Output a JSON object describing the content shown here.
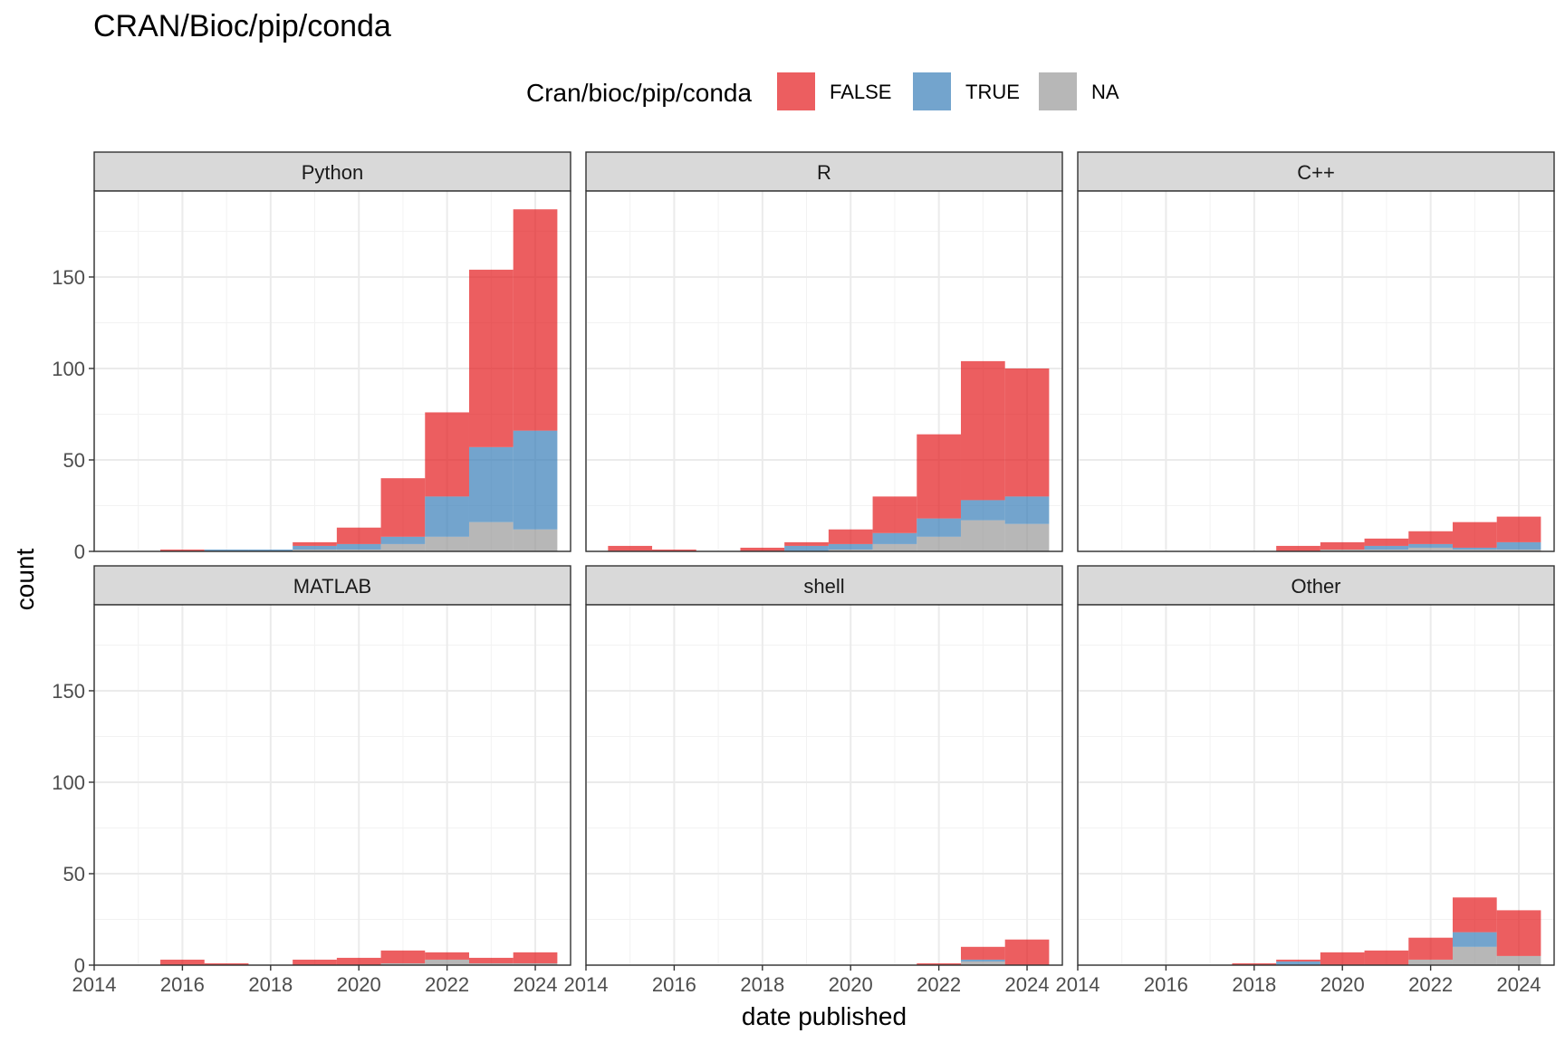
{
  "chart_data": {
    "type": "bar",
    "title": "CRAN/Bioc/pip/conda",
    "xlabel": "date published",
    "ylabel": "count",
    "xlim": [
      2014,
      2024.8
    ],
    "ylim": [
      0,
      197
    ],
    "x_ticks": [
      2014,
      2016,
      2018,
      2020,
      2022,
      2024
    ],
    "y_ticks": [
      0,
      50,
      100,
      150
    ],
    "bin_starts": [
      2015.5,
      2016.5,
      2017.5,
      2018.5,
      2019.5,
      2020.5,
      2021.5,
      2022.5,
      2023.5
    ],
    "bin_width": 1,
    "extra_bin": {
      "start": 2014.5,
      "end": 2015.5
    },
    "legend": {
      "title": "Cran/bioc/pip/conda",
      "position": "top",
      "entries": [
        {
          "label": "FALSE",
          "color": "#E41A1C"
        },
        {
          "label": "TRUE",
          "color": "#377EB8"
        },
        {
          "label": "NA",
          "color": "#999999"
        }
      ]
    },
    "grid": true,
    "facets": [
      {
        "name": "Python",
        "bins": [
          {
            "x0": 2015.5,
            "x1": 2016.5,
            "na": 0,
            "true": 0,
            "false": 1
          },
          {
            "x0": 2016.5,
            "x1": 2017.5,
            "na": 0,
            "true": 1,
            "false": 0
          },
          {
            "x0": 2017.5,
            "x1": 2018.5,
            "na": 0,
            "true": 1,
            "false": 0
          },
          {
            "x0": 2018.5,
            "x1": 2019.5,
            "na": 1,
            "true": 2,
            "false": 2
          },
          {
            "x0": 2019.5,
            "x1": 2020.5,
            "na": 1,
            "true": 3,
            "false": 9
          },
          {
            "x0": 2020.5,
            "x1": 2021.5,
            "na": 4,
            "true": 4,
            "false": 32
          },
          {
            "x0": 2021.5,
            "x1": 2022.5,
            "na": 8,
            "true": 22,
            "false": 46
          },
          {
            "x0": 2022.5,
            "x1": 2023.5,
            "na": 16,
            "true": 41,
            "false": 97
          },
          {
            "x0": 2023.5,
            "x1": 2024.5,
            "na": 12,
            "true": 54,
            "false": 121
          }
        ]
      },
      {
        "name": "R",
        "bins": [
          {
            "x0": 2014.5,
            "x1": 2015.5,
            "na": 0,
            "true": 0,
            "false": 3
          },
          {
            "x0": 2015.5,
            "x1": 2016.5,
            "na": 0,
            "true": 0,
            "false": 1
          },
          {
            "x0": 2016.5,
            "x1": 2017.5,
            "na": 0,
            "true": 0,
            "false": 0
          },
          {
            "x0": 2017.5,
            "x1": 2018.5,
            "na": 0,
            "true": 0,
            "false": 2
          },
          {
            "x0": 2018.5,
            "x1": 2019.5,
            "na": 0,
            "true": 3,
            "false": 2
          },
          {
            "x0": 2019.5,
            "x1": 2020.5,
            "na": 1,
            "true": 3,
            "false": 8
          },
          {
            "x0": 2020.5,
            "x1": 2021.5,
            "na": 4,
            "true": 6,
            "false": 20
          },
          {
            "x0": 2021.5,
            "x1": 2022.5,
            "na": 8,
            "true": 10,
            "false": 46
          },
          {
            "x0": 2022.5,
            "x1": 2023.5,
            "na": 17,
            "true": 11,
            "false": 76
          },
          {
            "x0": 2023.5,
            "x1": 2024.5,
            "na": 15,
            "true": 15,
            "false": 70
          }
        ]
      },
      {
        "name": "C++",
        "bins": [
          {
            "x0": 2018.5,
            "x1": 2019.5,
            "na": 0,
            "true": 0,
            "false": 3
          },
          {
            "x0": 2019.5,
            "x1": 2020.5,
            "na": 1,
            "true": 0,
            "false": 4
          },
          {
            "x0": 2020.5,
            "x1": 2021.5,
            "na": 1,
            "true": 2,
            "false": 4
          },
          {
            "x0": 2021.5,
            "x1": 2022.5,
            "na": 2,
            "true": 2,
            "false": 7
          },
          {
            "x0": 2022.5,
            "x1": 2023.5,
            "na": 1,
            "true": 1,
            "false": 14
          },
          {
            "x0": 2023.5,
            "x1": 2024.5,
            "na": 1,
            "true": 4,
            "false": 14
          }
        ]
      },
      {
        "name": "MATLAB",
        "bins": [
          {
            "x0": 2015.5,
            "x1": 2016.5,
            "na": 0,
            "true": 0,
            "false": 3
          },
          {
            "x0": 2016.5,
            "x1": 2017.5,
            "na": 0,
            "true": 0,
            "false": 1
          },
          {
            "x0": 2018.5,
            "x1": 2019.5,
            "na": 0,
            "true": 0,
            "false": 3
          },
          {
            "x0": 2019.5,
            "x1": 2020.5,
            "na": 0,
            "true": 0,
            "false": 4
          },
          {
            "x0": 2020.5,
            "x1": 2021.5,
            "na": 1,
            "true": 0,
            "false": 7
          },
          {
            "x0": 2021.5,
            "x1": 2022.5,
            "na": 3,
            "true": 0,
            "false": 4
          },
          {
            "x0": 2022.5,
            "x1": 2023.5,
            "na": 1,
            "true": 0,
            "false": 3
          },
          {
            "x0": 2023.5,
            "x1": 2024.5,
            "na": 1,
            "true": 0,
            "false": 6
          }
        ]
      },
      {
        "name": "shell",
        "bins": [
          {
            "x0": 2021.5,
            "x1": 2022.5,
            "na": 0,
            "true": 0,
            "false": 1
          },
          {
            "x0": 2022.5,
            "x1": 2023.5,
            "na": 2,
            "true": 1,
            "false": 7
          },
          {
            "x0": 2023.5,
            "x1": 2024.5,
            "na": 0,
            "true": 0,
            "false": 14
          }
        ]
      },
      {
        "name": "Other",
        "bins": [
          {
            "x0": 2017.5,
            "x1": 2018.5,
            "na": 0,
            "true": 0,
            "false": 1
          },
          {
            "x0": 2018.5,
            "x1": 2019.5,
            "na": 0,
            "true": 2,
            "false": 1
          },
          {
            "x0": 2019.5,
            "x1": 2020.5,
            "na": 0,
            "true": 0,
            "false": 7
          },
          {
            "x0": 2020.5,
            "x1": 2021.5,
            "na": 0,
            "true": 0,
            "false": 8
          },
          {
            "x0": 2021.5,
            "x1": 2022.5,
            "na": 3,
            "true": 0,
            "false": 12
          },
          {
            "x0": 2022.5,
            "x1": 2023.5,
            "na": 10,
            "true": 8,
            "false": 19
          },
          {
            "x0": 2023.5,
            "x1": 2024.5,
            "na": 5,
            "true": 0,
            "false": 25
          }
        ]
      }
    ]
  }
}
